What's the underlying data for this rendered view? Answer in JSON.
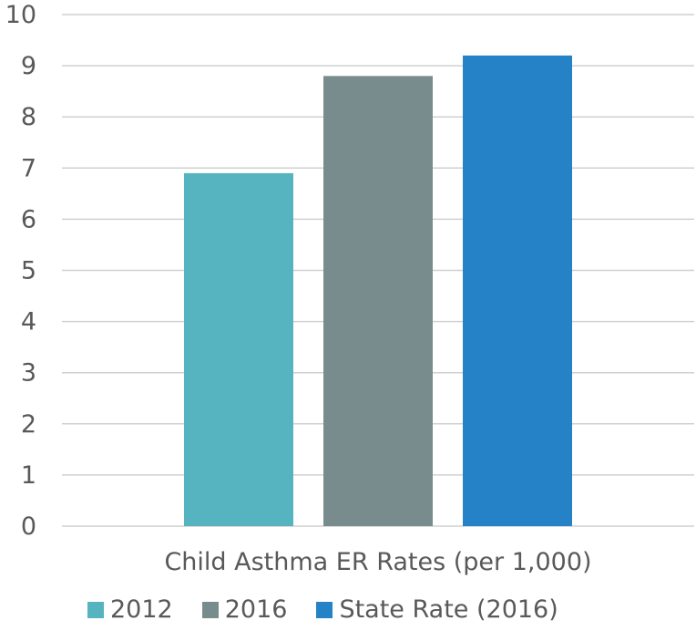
{
  "chart_data": {
    "type": "bar",
    "categories": [
      "Child Asthma ER Rates (per 1,000)"
    ],
    "series": [
      {
        "name": "2012",
        "values": [
          6.9
        ],
        "color": "#55b4bf"
      },
      {
        "name": "2016",
        "values": [
          8.8
        ],
        "color": "#798c8d"
      },
      {
        "name": "State Rate (2016)",
        "values": [
          9.2
        ],
        "color": "#2582c7"
      }
    ],
    "ylim": [
      0,
      10
    ],
    "yticks": [
      "0",
      "1",
      "2",
      "3",
      "4",
      "5",
      "6",
      "7",
      "8",
      "9",
      "10"
    ],
    "grid": true,
    "legend_position": "bottom"
  }
}
